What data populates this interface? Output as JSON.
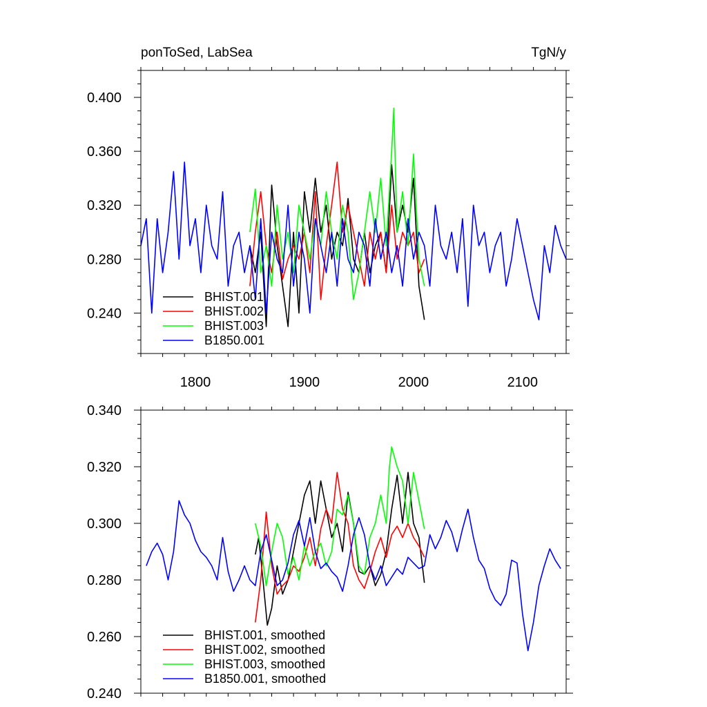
{
  "chart_data": [
    {
      "type": "line",
      "title": "ponToSed, LabSea",
      "units": "TgN/y",
      "xlim": [
        1750,
        2140
      ],
      "ylim": [
        0.21,
        0.42
      ],
      "xticks": [
        1800,
        1900,
        2000,
        2100
      ],
      "xtick_labels": [
        "1800",
        "1900",
        "2000",
        "2100"
      ],
      "yticks": [
        0.24,
        0.28,
        0.32,
        0.36,
        0.4
      ],
      "ytick_labels": [
        "0.240",
        "0.280",
        "0.320",
        "0.360",
        "0.400"
      ],
      "legend_position": "bottom-left",
      "series": [
        {
          "name": "BHIST.001",
          "color": "#000000",
          "x": [
            1850,
            1855,
            1860,
            1865,
            1870,
            1875,
            1880,
            1885,
            1890,
            1895,
            1900,
            1905,
            1910,
            1915,
            1920,
            1925,
            1930,
            1935,
            1940,
            1945,
            1950,
            1955,
            1960,
            1965,
            1970,
            1975,
            1980,
            1985,
            1990,
            1995,
            2000,
            2005,
            2010
          ],
          "y": [
            0.29,
            0.27,
            0.3,
            0.23,
            0.335,
            0.29,
            0.26,
            0.23,
            0.3,
            0.24,
            0.33,
            0.3,
            0.34,
            0.3,
            0.32,
            0.28,
            0.3,
            0.29,
            0.325,
            0.28,
            0.27,
            0.3,
            0.27,
            0.29,
            0.3,
            0.27,
            0.35,
            0.3,
            0.32,
            0.3,
            0.34,
            0.26,
            0.235
          ]
        },
        {
          "name": "BHIST.002",
          "color": "#ff0000",
          "x": [
            1850,
            1855,
            1860,
            1865,
            1870,
            1875,
            1880,
            1885,
            1890,
            1895,
            1900,
            1905,
            1910,
            1915,
            1920,
            1925,
            1930,
            1935,
            1940,
            1945,
            1950,
            1955,
            1960,
            1965,
            1970,
            1975,
            1980,
            1985,
            1990,
            1995,
            2000,
            2005,
            2010
          ],
          "y": [
            0.26,
            0.3,
            0.33,
            0.29,
            0.27,
            0.3,
            0.265,
            0.28,
            0.29,
            0.28,
            0.3,
            0.27,
            0.33,
            0.25,
            0.29,
            0.32,
            0.352,
            0.3,
            0.32,
            0.3,
            0.28,
            0.26,
            0.3,
            0.28,
            0.3,
            0.27,
            0.32,
            0.28,
            0.3,
            0.29,
            0.3,
            0.27,
            0.28
          ]
        },
        {
          "name": "BHIST.003",
          "color": "#00ff00",
          "x": [
            1850,
            1855,
            1860,
            1865,
            1870,
            1875,
            1880,
            1885,
            1890,
            1895,
            1900,
            1905,
            1910,
            1915,
            1920,
            1925,
            1930,
            1935,
            1940,
            1945,
            1950,
            1955,
            1960,
            1965,
            1970,
            1975,
            1980,
            1982,
            1985,
            1990,
            1995,
            2000,
            2005,
            2010
          ],
          "y": [
            0.3,
            0.332,
            0.27,
            0.29,
            0.26,
            0.32,
            0.28,
            0.3,
            0.27,
            0.32,
            0.3,
            0.28,
            0.31,
            0.29,
            0.33,
            0.3,
            0.28,
            0.32,
            0.3,
            0.25,
            0.27,
            0.3,
            0.33,
            0.3,
            0.34,
            0.29,
            0.36,
            0.392,
            0.3,
            0.33,
            0.29,
            0.358,
            0.28,
            0.26
          ]
        },
        {
          "name": "B1850.001",
          "color": "#0000ff",
          "x": [
            1750,
            1755,
            1760,
            1765,
            1770,
            1775,
            1780,
            1785,
            1790,
            1795,
            1800,
            1805,
            1810,
            1815,
            1820,
            1825,
            1830,
            1835,
            1840,
            1845,
            1850,
            1855,
            1860,
            1865,
            1870,
            1875,
            1880,
            1885,
            1890,
            1895,
            1900,
            1905,
            1910,
            1915,
            1920,
            1925,
            1930,
            1935,
            1940,
            1945,
            1950,
            1955,
            1960,
            1965,
            1970,
            1975,
            1980,
            1985,
            1990,
            1995,
            2000,
            2005,
            2010,
            2015,
            2020,
            2025,
            2030,
            2035,
            2040,
            2045,
            2050,
            2055,
            2060,
            2065,
            2070,
            2075,
            2080,
            2085,
            2090,
            2095,
            2100,
            2105,
            2110,
            2115,
            2120,
            2125,
            2130,
            2135,
            2140
          ],
          "y": [
            0.29,
            0.31,
            0.24,
            0.31,
            0.27,
            0.3,
            0.345,
            0.28,
            0.352,
            0.29,
            0.31,
            0.27,
            0.32,
            0.29,
            0.28,
            0.33,
            0.26,
            0.29,
            0.3,
            0.27,
            0.29,
            0.25,
            0.31,
            0.24,
            0.3,
            0.28,
            0.27,
            0.32,
            0.26,
            0.3,
            0.28,
            0.24,
            0.31,
            0.29,
            0.27,
            0.3,
            0.26,
            0.31,
            0.28,
            0.27,
            0.3,
            0.29,
            0.26,
            0.31,
            0.28,
            0.3,
            0.27,
            0.29,
            0.26,
            0.31,
            0.28,
            0.3,
            0.29,
            0.26,
            0.32,
            0.29,
            0.28,
            0.3,
            0.27,
            0.31,
            0.245,
            0.32,
            0.29,
            0.3,
            0.27,
            0.29,
            0.3,
            0.26,
            0.28,
            0.31,
            0.29,
            0.27,
            0.25,
            0.235,
            0.29,
            0.27,
            0.305,
            0.29,
            0.28
          ]
        }
      ]
    },
    {
      "type": "line",
      "xlim": [
        1750,
        2140
      ],
      "ylim": [
        0.24,
        0.34
      ],
      "xticks": [
        1800,
        1900,
        2000,
        2100
      ],
      "yticks": [
        0.24,
        0.26,
        0.28,
        0.3,
        0.32,
        0.34
      ],
      "ytick_labels": [
        "0.240",
        "0.260",
        "0.280",
        "0.300",
        "0.320",
        "0.340"
      ],
      "legend_position": "bottom-left",
      "series": [
        {
          "name": "BHIST.001, smoothed",
          "color": "#000000",
          "x": [
            1855,
            1858,
            1862,
            1866,
            1870,
            1875,
            1880,
            1885,
            1890,
            1895,
            1900,
            1905,
            1910,
            1915,
            1920,
            1925,
            1930,
            1935,
            1940,
            1945,
            1950,
            1955,
            1960,
            1965,
            1970,
            1975,
            1980,
            1985,
            1990,
            1995,
            2000,
            2005,
            2010
          ],
          "y": [
            0.289,
            0.295,
            0.28,
            0.264,
            0.27,
            0.285,
            0.275,
            0.28,
            0.29,
            0.3,
            0.31,
            0.315,
            0.3,
            0.315,
            0.305,
            0.295,
            0.3,
            0.29,
            0.311,
            0.3,
            0.283,
            0.282,
            0.285,
            0.278,
            0.282,
            0.29,
            0.305,
            0.317,
            0.3,
            0.318,
            0.3,
            0.295,
            0.279
          ]
        },
        {
          "name": "BHIST.002, smoothed",
          "color": "#ff0000",
          "x": [
            1855,
            1860,
            1865,
            1870,
            1875,
            1880,
            1885,
            1890,
            1895,
            1900,
            1905,
            1910,
            1915,
            1920,
            1925,
            1930,
            1935,
            1940,
            1945,
            1950,
            1955,
            1960,
            1965,
            1970,
            1975,
            1980,
            1985,
            1990,
            1995,
            2000,
            2005,
            2010
          ],
          "y": [
            0.265,
            0.28,
            0.304,
            0.285,
            0.275,
            0.278,
            0.28,
            0.285,
            0.283,
            0.288,
            0.295,
            0.285,
            0.298,
            0.305,
            0.3,
            0.318,
            0.305,
            0.3,
            0.285,
            0.28,
            0.277,
            0.283,
            0.29,
            0.295,
            0.288,
            0.296,
            0.299,
            0.295,
            0.3,
            0.295,
            0.292,
            0.288
          ]
        },
        {
          "name": "BHIST.003, smoothed",
          "color": "#00ff00",
          "x": [
            1855,
            1860,
            1865,
            1870,
            1875,
            1880,
            1885,
            1890,
            1895,
            1900,
            1905,
            1910,
            1915,
            1920,
            1925,
            1930,
            1935,
            1940,
            1945,
            1950,
            1955,
            1960,
            1965,
            1970,
            1975,
            1978,
            1980,
            1985,
            1990,
            1995,
            2000,
            2005,
            2010
          ],
          "y": [
            0.3,
            0.292,
            0.278,
            0.29,
            0.3,
            0.295,
            0.282,
            0.288,
            0.28,
            0.292,
            0.285,
            0.29,
            0.293,
            0.285,
            0.29,
            0.305,
            0.303,
            0.31,
            0.3,
            0.285,
            0.282,
            0.295,
            0.3,
            0.31,
            0.3,
            0.32,
            0.327,
            0.32,
            0.315,
            0.3,
            0.318,
            0.308,
            0.298
          ]
        },
        {
          "name": "B1850.001, smoothed",
          "color": "#0000ff",
          "x": [
            1755,
            1760,
            1765,
            1770,
            1775,
            1780,
            1785,
            1790,
            1795,
            1800,
            1805,
            1810,
            1815,
            1820,
            1825,
            1830,
            1835,
            1840,
            1845,
            1850,
            1855,
            1860,
            1865,
            1870,
            1875,
            1880,
            1885,
            1890,
            1895,
            1900,
            1905,
            1910,
            1915,
            1920,
            1925,
            1930,
            1935,
            1940,
            1945,
            1950,
            1955,
            1960,
            1965,
            1970,
            1975,
            1980,
            1985,
            1990,
            1995,
            2000,
            2005,
            2010,
            2015,
            2020,
            2025,
            2030,
            2035,
            2040,
            2045,
            2050,
            2055,
            2060,
            2065,
            2070,
            2075,
            2080,
            2085,
            2090,
            2095,
            2100,
            2105,
            2110,
            2115,
            2120,
            2125,
            2130,
            2135
          ],
          "y": [
            0.285,
            0.29,
            0.293,
            0.289,
            0.28,
            0.29,
            0.308,
            0.303,
            0.3,
            0.294,
            0.29,
            0.288,
            0.285,
            0.28,
            0.295,
            0.283,
            0.276,
            0.28,
            0.285,
            0.28,
            0.278,
            0.29,
            0.296,
            0.287,
            0.278,
            0.28,
            0.286,
            0.296,
            0.301,
            0.292,
            0.302,
            0.29,
            0.284,
            0.286,
            0.283,
            0.281,
            0.276,
            0.285,
            0.296,
            0.302,
            0.296,
            0.285,
            0.28,
            0.285,
            0.278,
            0.281,
            0.284,
            0.282,
            0.288,
            0.286,
            0.284,
            0.285,
            0.296,
            0.291,
            0.295,
            0.301,
            0.297,
            0.29,
            0.298,
            0.305,
            0.295,
            0.287,
            0.284,
            0.277,
            0.273,
            0.271,
            0.275,
            0.287,
            0.286,
            0.268,
            0.255,
            0.265,
            0.278,
            0.285,
            0.291,
            0.287,
            0.284
          ]
        }
      ]
    }
  ]
}
